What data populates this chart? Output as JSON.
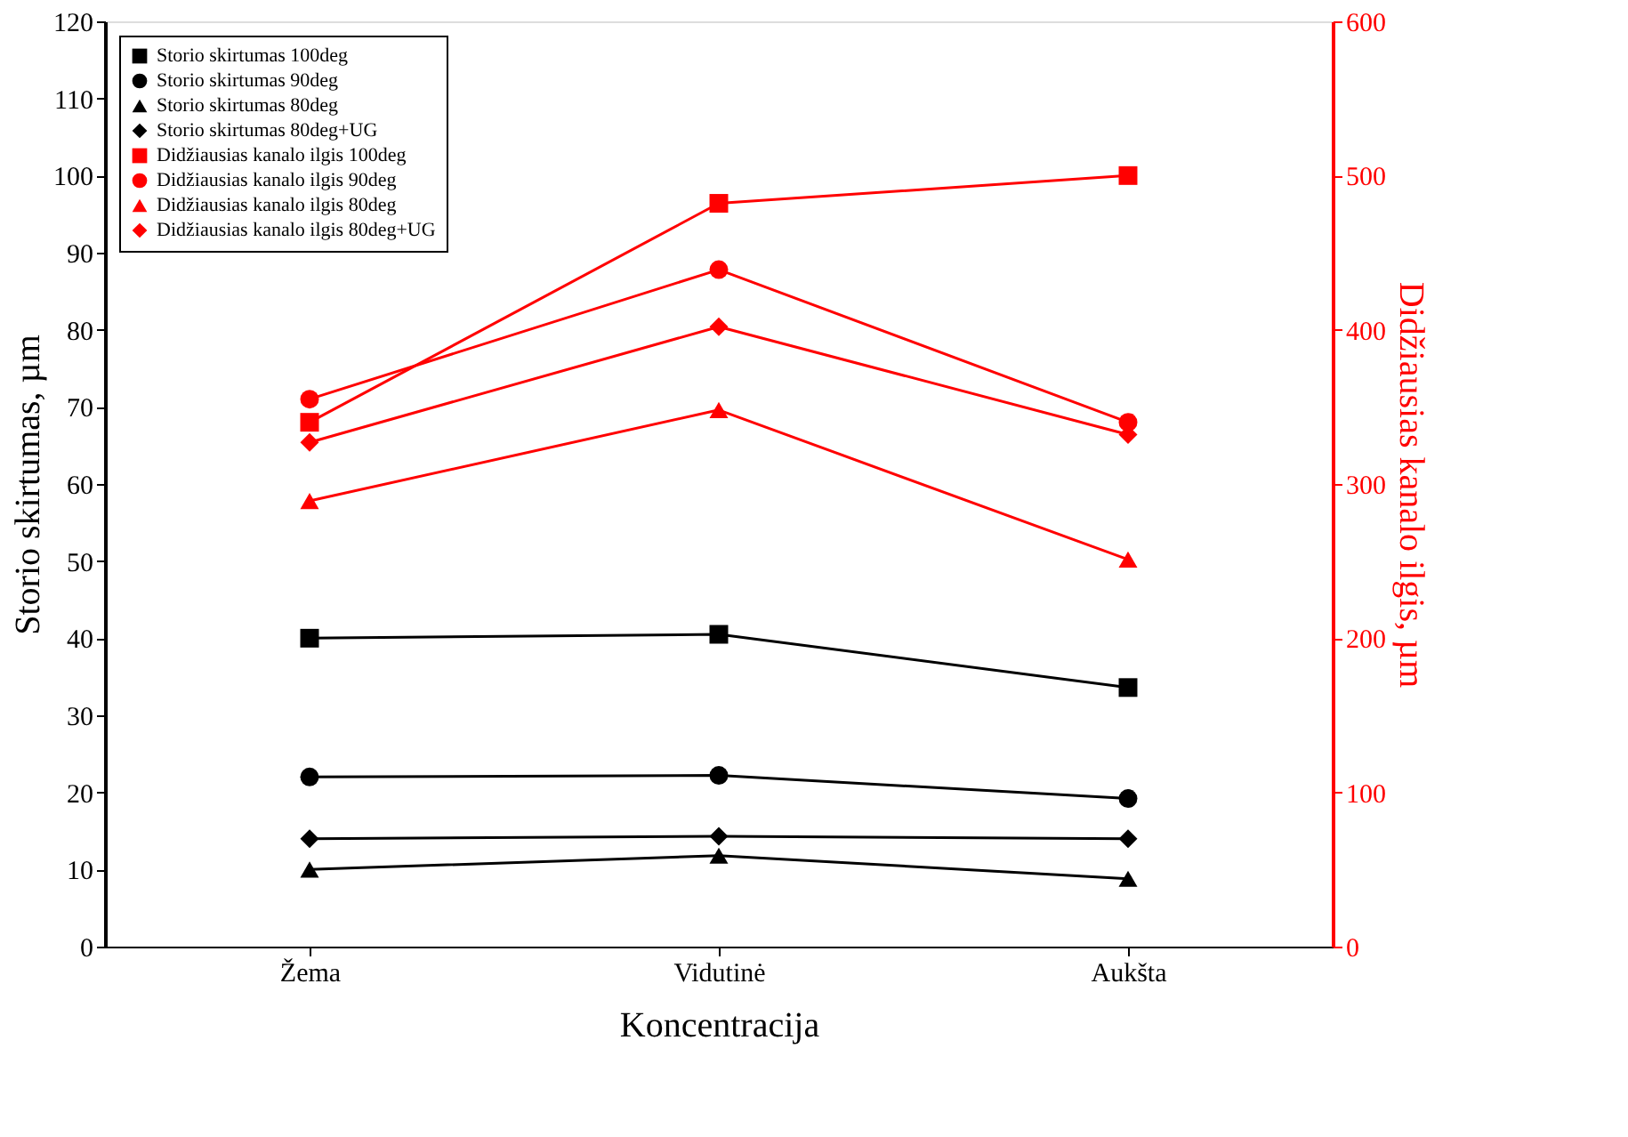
{
  "chart_data": {
    "type": "line",
    "xlabel": "Koncentracija",
    "ylabel": "Storio skirtumas, µm",
    "y2label": "Didžiausias kanalo ilgis, µm",
    "categories": [
      "Žema",
      "Vidutinė",
      "Aukšta"
    ],
    "ylim": [
      0,
      120
    ],
    "yticks": [
      0,
      10,
      20,
      30,
      40,
      50,
      60,
      70,
      80,
      90,
      100,
      110,
      120
    ],
    "y2lim": [
      0,
      600
    ],
    "y2ticks": [
      0,
      100,
      200,
      300,
      400,
      500,
      600
    ],
    "legend": "top left",
    "grid": false,
    "line_style": "solid",
    "series": [
      {
        "name": "Storio skirtumas 100deg",
        "color": "#000000",
        "marker": "square",
        "values": [
          40,
          40.5,
          33.6
        ]
      },
      {
        "name": "Storio skirtumas 90deg",
        "color": "#000000",
        "marker": "circle",
        "values": [
          22,
          22.2,
          19.2
        ]
      },
      {
        "name": "Storio skirtumas 80deg",
        "color": "#000000",
        "marker": "triangle",
        "values": [
          10,
          11.8,
          8.8
        ]
      },
      {
        "name": "Storio skirtumas 80deg+UG",
        "color": "#000000",
        "marker": "diamond",
        "values": [
          14,
          14.3,
          14
        ]
      },
      {
        "name": "Didžiausias kanalo ilgis 100deg",
        "color": "#ff0000",
        "marker": "square",
        "axis": "y2",
        "values": [
          340,
          482,
          500
        ]
      },
      {
        "name": "Didžiausias kanalo ilgis 90deg",
        "color": "#ff0000",
        "marker": "circle",
        "axis": "y2",
        "values": [
          355,
          439,
          340
        ]
      },
      {
        "name": "Didžiausias kanalo ilgis 80deg",
        "color": "#ff0000",
        "marker": "triangle",
        "axis": "y2",
        "values": [
          289,
          348,
          251
        ]
      },
      {
        "name": "Didžiausias kanalo ilgis 80deg+UG",
        "color": "#ff0000",
        "marker": "diamond",
        "axis": "y2",
        "values": [
          327,
          402,
          332
        ]
      }
    ]
  }
}
